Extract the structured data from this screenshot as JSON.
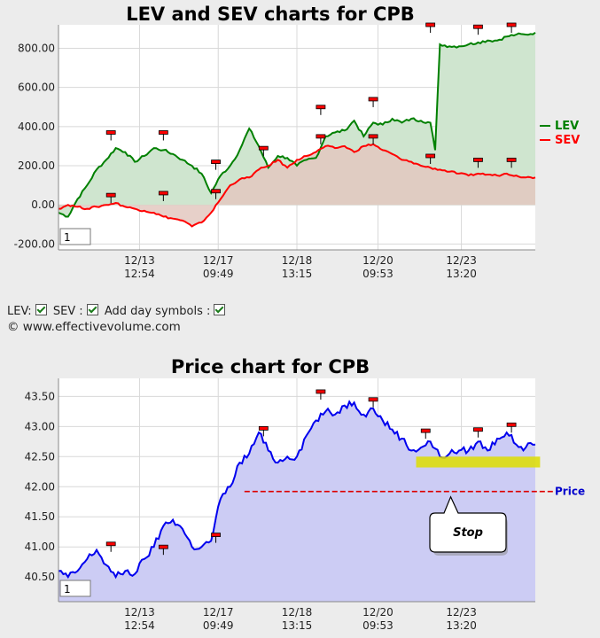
{
  "chart_data": [
    {
      "type": "line",
      "title": "LEV and SEV charts for CPB",
      "y_ticks": [
        "800.00",
        "600.00",
        "400.00",
        "200.00",
        "0.00",
        "-200.00"
      ],
      "y_tick_values": [
        800,
        600,
        400,
        200,
        0,
        -200
      ],
      "ylim": [
        -230,
        920
      ],
      "x_ticks": [
        {
          "date": "12/13",
          "time": "12:54"
        },
        {
          "date": "12/17",
          "time": "09:49"
        },
        {
          "date": "12/18",
          "time": "13:15"
        },
        {
          "date": "12/20",
          "time": "09:53"
        },
        {
          "date": "12/23",
          "time": "13:20"
        }
      ],
      "x_index_range": [
        0,
        100
      ],
      "x_tick_positions": [
        17,
        33.5,
        50,
        67,
        84.5
      ],
      "series": [
        {
          "name": "LEV",
          "color": "#008000",
          "fill": "#cfe5cf",
          "x": [
            0,
            2,
            4,
            6,
            8,
            10,
            12,
            14,
            16,
            18,
            20,
            22,
            24,
            26,
            28,
            30,
            32,
            34,
            36,
            38,
            40,
            42,
            44,
            46,
            48,
            50,
            52,
            54,
            56,
            58,
            60,
            62,
            64,
            66,
            68,
            70,
            72,
            74,
            76,
            78,
            79,
            80,
            82,
            84,
            86,
            88,
            90,
            92,
            94,
            96,
            98,
            100
          ],
          "values": [
            -40,
            -60,
            30,
            100,
            180,
            230,
            290,
            270,
            220,
            250,
            290,
            280,
            260,
            230,
            200,
            160,
            60,
            150,
            200,
            280,
            390,
            300,
            190,
            250,
            240,
            200,
            230,
            240,
            350,
            370,
            380,
            430,
            350,
            420,
            410,
            440,
            420,
            440,
            430,
            420,
            280,
            820,
            810,
            810,
            820,
            830,
            840,
            840,
            860,
            870,
            870,
            880
          ]
        },
        {
          "name": "SEV",
          "color": "#ff0000",
          "fill": "#e3c8c0",
          "x": [
            0,
            2,
            4,
            6,
            8,
            10,
            12,
            14,
            16,
            18,
            20,
            22,
            24,
            26,
            28,
            30,
            32,
            34,
            36,
            38,
            40,
            42,
            44,
            46,
            48,
            50,
            52,
            54,
            56,
            58,
            60,
            62,
            64,
            66,
            68,
            70,
            72,
            74,
            76,
            78,
            80,
            82,
            84,
            86,
            88,
            90,
            92,
            94,
            96,
            98,
            100
          ],
          "values": [
            -20,
            0,
            -10,
            -20,
            -10,
            0,
            10,
            -10,
            -20,
            -30,
            -40,
            -60,
            -70,
            -80,
            -110,
            -90,
            -40,
            30,
            100,
            130,
            140,
            180,
            200,
            230,
            190,
            230,
            250,
            270,
            300,
            290,
            300,
            270,
            300,
            310,
            280,
            260,
            230,
            220,
            200,
            190,
            180,
            170,
            160,
            150,
            160,
            155,
            150,
            160,
            150,
            140,
            140
          ]
        }
      ],
      "legend": [
        "LEV",
        "SEV"
      ],
      "legend_position": "right",
      "corner_box": "1",
      "markers": [
        {
          "series": "LEV",
          "x": 11,
          "value": 370
        },
        {
          "series": "LEV",
          "x": 22,
          "value": 370
        },
        {
          "series": "LEV",
          "x": 33,
          "value": 220
        },
        {
          "series": "LEV",
          "x": 43,
          "value": 290
        },
        {
          "series": "LEV",
          "x": 55,
          "value": 500
        },
        {
          "series": "LEV",
          "x": 66,
          "value": 540
        },
        {
          "series": "LEV",
          "x": 78,
          "value": 920
        },
        {
          "series": "LEV",
          "x": 88,
          "value": 910
        },
        {
          "series": "LEV",
          "x": 95,
          "value": 920
        },
        {
          "series": "SEV",
          "x": 11,
          "value": 50
        },
        {
          "series": "SEV",
          "x": 22,
          "value": 60
        },
        {
          "series": "SEV",
          "x": 33,
          "value": 70
        },
        {
          "series": "SEV",
          "x": 55,
          "value": 350
        },
        {
          "series": "SEV",
          "x": 66,
          "value": 350
        },
        {
          "series": "SEV",
          "x": 78,
          "value": 250
        },
        {
          "series": "SEV",
          "x": 88,
          "value": 230
        },
        {
          "series": "SEV",
          "x": 95,
          "value": 230
        }
      ]
    },
    {
      "type": "line",
      "title": "Price chart for CPB",
      "y_ticks": [
        "43.50",
        "43.00",
        "42.50",
        "42.00",
        "41.50",
        "41.00",
        "40.50"
      ],
      "y_tick_values": [
        43.5,
        43,
        42.5,
        42,
        41.5,
        41,
        40.5
      ],
      "ylim": [
        40.09,
        43.8
      ],
      "x_ticks": [
        {
          "date": "12/13",
          "time": "12:54"
        },
        {
          "date": "12/17",
          "time": "09:49"
        },
        {
          "date": "12/18",
          "time": "13:15"
        },
        {
          "date": "12/20",
          "time": "09:53"
        },
        {
          "date": "12/23",
          "time": "13:20"
        }
      ],
      "x_index_range": [
        0,
        100
      ],
      "x_tick_positions": [
        17,
        33.5,
        50,
        67,
        84.5
      ],
      "series": [
        {
          "name": "Price",
          "color": "#0000ee",
          "fill": "#ccccf4",
          "x": [
            0,
            2,
            4,
            6,
            8,
            10,
            12,
            14,
            16,
            18,
            20,
            22,
            24,
            26,
            28,
            30,
            32,
            34,
            36,
            38,
            40,
            42,
            44,
            46,
            48,
            50,
            52,
            54,
            56,
            58,
            60,
            62,
            64,
            66,
            68,
            70,
            72,
            74,
            76,
            78,
            80,
            82,
            84,
            86,
            88,
            90,
            92,
            94,
            96,
            98,
            100
          ],
          "values": [
            40.6,
            40.5,
            40.6,
            40.8,
            40.95,
            40.7,
            40.5,
            40.6,
            40.55,
            40.8,
            41.0,
            41.35,
            41.45,
            41.3,
            41.0,
            41.0,
            41.1,
            41.8,
            42.0,
            42.4,
            42.55,
            42.9,
            42.6,
            42.4,
            42.5,
            42.5,
            42.85,
            43.1,
            43.25,
            43.2,
            43.35,
            43.4,
            43.2,
            43.3,
            43.1,
            42.95,
            42.8,
            42.6,
            42.65,
            42.75,
            42.5,
            42.55,
            42.6,
            42.6,
            42.75,
            42.6,
            42.8,
            42.9,
            42.7,
            42.65,
            42.7
          ]
        }
      ],
      "markers": [
        {
          "x": 11,
          "value": 41.05
        },
        {
          "x": 22,
          "value": 41.0
        },
        {
          "x": 33,
          "value": 41.2
        },
        {
          "x": 43,
          "value": 42.97
        },
        {
          "x": 55,
          "value": 43.58
        },
        {
          "x": 66,
          "value": 43.45
        },
        {
          "x": 77,
          "value": 42.93
        },
        {
          "x": 88,
          "value": 42.95
        },
        {
          "x": 95,
          "value": 43.03
        }
      ],
      "highlight_band": {
        "x_from": 75,
        "x_to": 101,
        "y_from": 42.32,
        "y_to": 42.5,
        "color": "#dddd00"
      },
      "stop_line": {
        "label": "Price",
        "value": 41.92,
        "x_from": 39,
        "color": "#dd0000",
        "label_color": "#0000cc"
      },
      "callout": {
        "text": "Stop"
      },
      "corner_box": "1"
    }
  ],
  "controls": {
    "lev_label": "LEV:",
    "sev_label": "SEV :",
    "day_symbols_label": "Add day symbols :"
  },
  "copyright": "© www.effectivevolume.com"
}
